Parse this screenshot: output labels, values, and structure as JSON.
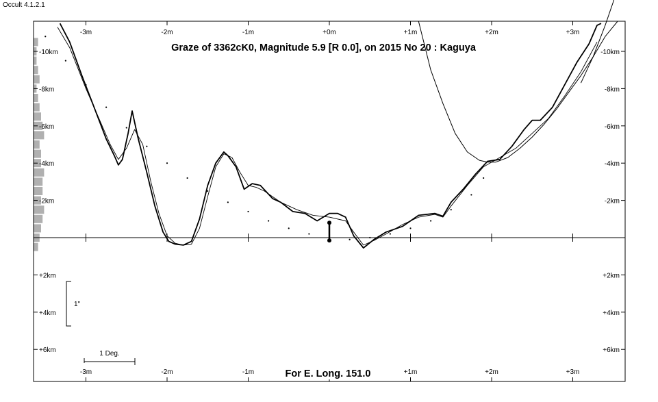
{
  "app_version": "Occult 4.1.2.1",
  "chart_data": {
    "type": "line",
    "title": "Graze of  3362cK0,  Magnitude 5.9 [R 0.0],  on 2015 No  20  :  Kaguya",
    "footer": "For E. Long. 151.0",
    "x_axis": {
      "unit": "minutes",
      "range": [
        -3.6,
        3.7
      ],
      "ticks": [
        -3,
        -2,
        -1,
        0,
        1,
        2,
        3
      ],
      "tick_labels": [
        "-3m",
        "-2m",
        "-1m",
        "+0m",
        "+1m",
        "+2m",
        "+3m"
      ]
    },
    "y_axis": {
      "unit": "km",
      "range": [
        -11.6,
        7.6
      ],
      "ticks": [
        -10,
        -8,
        -6,
        -4,
        -2,
        2,
        4,
        6
      ],
      "tick_labels": [
        "-10km",
        "-8km",
        "-6km",
        "-4km",
        "-2km",
        "+2km",
        "+4km",
        "+6km"
      ]
    },
    "scale_bars": {
      "vertical_label": "1\"",
      "horizontal_label": "1 Deg."
    },
    "series": [
      {
        "style": "rough-profile",
        "x": [
          -3.32,
          -3.2,
          -3.05,
          -2.9,
          -2.75,
          -2.65,
          -2.6,
          -2.55,
          -2.48,
          -2.43,
          -2.36,
          -2.25,
          -2.15,
          -2.05,
          -1.98,
          -1.9,
          -1.8,
          -1.7,
          -1.6,
          -1.5,
          -1.4,
          -1.3,
          -1.25,
          -1.15,
          -1.05,
          -0.95,
          -0.85,
          -0.7,
          -0.6,
          -0.45,
          -0.3,
          -0.15,
          0,
          0.1,
          0.2,
          0.3,
          0.42,
          0.55,
          0.7,
          0.9,
          1.1,
          1.3,
          1.4,
          1.5,
          1.65,
          1.8,
          1.95,
          2.1,
          2.25,
          2.4,
          2.5,
          2.6,
          2.75,
          2.9,
          3.05,
          3.2,
          3.3,
          3.35
        ],
        "y": [
          -11.5,
          -10.5,
          -8.7,
          -7.0,
          -5.3,
          -4.4,
          -3.9,
          -4.2,
          -5.6,
          -6.8,
          -5.4,
          -3.5,
          -1.7,
          -0.3,
          0.2,
          0.35,
          0.4,
          0.2,
          -1.0,
          -2.8,
          -4.0,
          -4.6,
          -4.4,
          -3.8,
          -2.6,
          -2.9,
          -2.8,
          -2.1,
          -1.9,
          -1.4,
          -1.3,
          -0.9,
          -1.3,
          -1.3,
          -1.1,
          -0.1,
          0.55,
          0.1,
          -0.3,
          -0.6,
          -1.2,
          -1.3,
          -1.15,
          -1.9,
          -2.6,
          -3.4,
          -4.1,
          -4.2,
          -4.9,
          -5.8,
          -6.3,
          -6.3,
          -7.0,
          -8.2,
          -9.4,
          -10.4,
          -11.4,
          -11.5
        ]
      },
      {
        "style": "smooth-profile",
        "x": [
          -3.35,
          -3.2,
          -3.0,
          -2.85,
          -2.7,
          -2.6,
          -2.5,
          -2.4,
          -2.3,
          -2.2,
          -2.1,
          -2.0,
          -1.9,
          -1.8,
          -1.7,
          -1.6,
          -1.5,
          -1.4,
          -1.3,
          -1.2,
          -1.1,
          -1.0,
          -0.9,
          -0.8,
          -0.6,
          -0.4,
          -0.2,
          0,
          0.2,
          0.3,
          0.42,
          0.55,
          0.7,
          0.9,
          1.1,
          1.3,
          1.4,
          1.5,
          1.7,
          1.9,
          2.1,
          2.3,
          2.5,
          2.7,
          2.9,
          3.1,
          3.3
        ],
        "y": [
          -11.3,
          -10.2,
          -8.0,
          -6.5,
          -5.0,
          -4.2,
          -4.8,
          -5.8,
          -5.0,
          -3.0,
          -1.3,
          -0.1,
          0.3,
          0.4,
          0.35,
          -0.5,
          -2.2,
          -3.8,
          -4.5,
          -4.3,
          -3.5,
          -2.8,
          -2.7,
          -2.5,
          -1.9,
          -1.5,
          -1.2,
          -1.1,
          -0.9,
          -0.3,
          0.4,
          0.15,
          -0.2,
          -0.7,
          -1.1,
          -1.25,
          -1.1,
          -1.7,
          -2.8,
          -3.8,
          -4.3,
          -4.8,
          -5.6,
          -6.4,
          -7.6,
          -8.9,
          -10.5
        ]
      },
      {
        "style": "limb-curve-a",
        "x": [
          1.1,
          1.25,
          1.4,
          1.55,
          1.7,
          1.85,
          1.95,
          2.05,
          2.2,
          2.35,
          2.5,
          2.65,
          2.8,
          2.95,
          3.1,
          3.25,
          3.4,
          3.55
        ],
        "y": [
          -11.6,
          -9.0,
          -7.2,
          -5.6,
          -4.6,
          -4.15,
          -4.05,
          -4.05,
          -4.3,
          -4.8,
          -5.4,
          -6.1,
          -6.9,
          -7.8,
          -8.7,
          -9.7,
          -10.8,
          -11.6
        ]
      },
      {
        "style": "limb-curve-b",
        "x": [
          3.1,
          3.25,
          3.4,
          3.55
        ],
        "y": [
          -8.3,
          -9.7,
          -11.4,
          -13.3
        ]
      },
      {
        "style": "lower-limit-dots",
        "x": [
          -3.5,
          -3.25,
          -3.0,
          -2.75,
          -2.5,
          -2.25,
          -2.0,
          -1.75,
          -1.5,
          -1.25,
          -1.0,
          -0.75,
          -0.5,
          -0.25,
          0,
          0.25,
          0.5,
          0.75,
          1.0,
          1.25,
          1.5,
          1.75,
          1.9
        ],
        "y": [
          -10.8,
          -9.5,
          -8.2,
          -7.0,
          -5.9,
          -4.9,
          -4.0,
          -3.2,
          -2.5,
          -1.9,
          -1.4,
          -0.9,
          -0.5,
          -0.2,
          0.0,
          0.1,
          0.0,
          -0.2,
          -0.5,
          -0.9,
          -1.5,
          -2.3,
          -3.2
        ]
      }
    ],
    "observer_marker": {
      "x": 0.0,
      "y_from": -0.8,
      "y_to": 0.15
    },
    "histogram_left": {
      "y": [
        -10.5,
        -10.0,
        -9.5,
        -9.0,
        -8.5,
        -8.0,
        -7.5,
        -7.0,
        -6.5,
        -6.0,
        -5.5,
        -5.0,
        -4.5,
        -4.0,
        -3.5,
        -3.0,
        -2.5,
        -2.0,
        -1.5,
        -1.0,
        -0.5,
        0.0,
        0.5
      ],
      "values": [
        3,
        2,
        2,
        3,
        4,
        2,
        3,
        4,
        5,
        6,
        7,
        4,
        5,
        5,
        7,
        6,
        6,
        5,
        7,
        6,
        5,
        4,
        3
      ]
    },
    "grid": false,
    "legend": "none",
    "colors": {
      "curves": "#000000",
      "histogram": "#b0b0b0",
      "frame": "#000000"
    }
  }
}
